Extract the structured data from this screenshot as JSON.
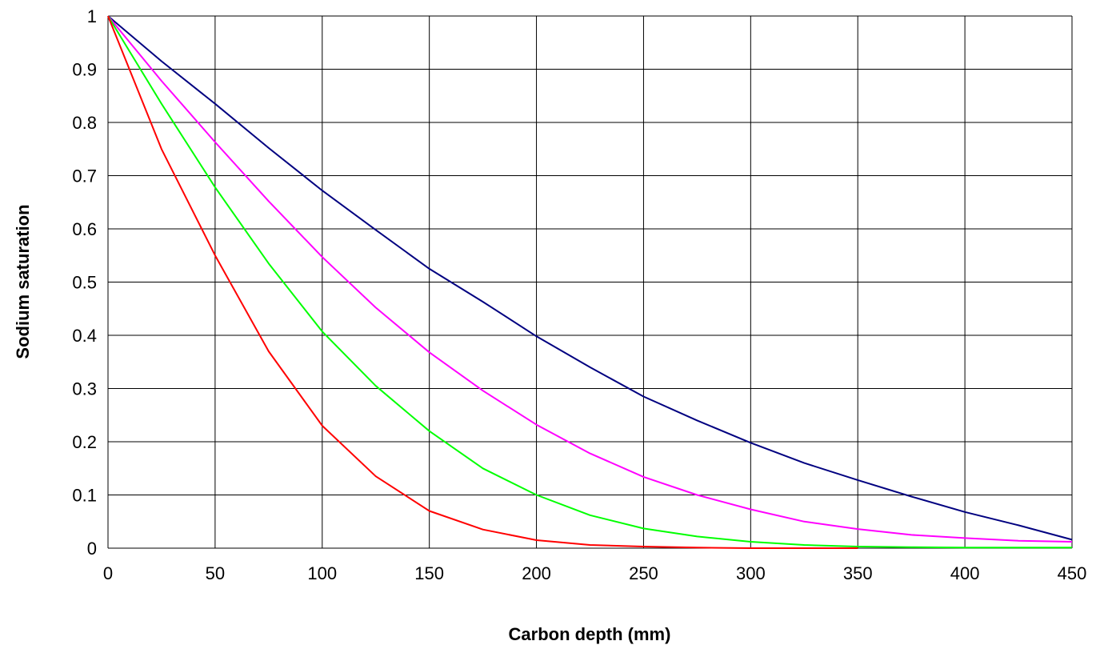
{
  "chart_data": {
    "type": "line",
    "title": "",
    "xlabel": "Carbon depth (mm)",
    "ylabel": "Sodium saturation",
    "xlim": [
      0,
      450
    ],
    "ylim": [
      0,
      1
    ],
    "x_ticks": [
      0,
      50,
      100,
      150,
      200,
      250,
      300,
      350,
      400,
      450
    ],
    "y_ticks": [
      0,
      0.1,
      0.2,
      0.3,
      0.4,
      0.5,
      0.6,
      0.7,
      0.8,
      0.9,
      1
    ],
    "x_tick_labels": [
      "0",
      "50",
      "100",
      "150",
      "200",
      "250",
      "300",
      "350",
      "400",
      "450"
    ],
    "y_tick_labels": [
      "0",
      "0.1",
      "0.2",
      "0.3",
      "0.4",
      "0.5",
      "0.6",
      "0.7",
      "0.8",
      "0.9",
      "1"
    ],
    "grid": true,
    "legend": "none",
    "colors": {
      "grid": "#000000",
      "background": "#ffffff"
    },
    "series": [
      {
        "color": "#000080",
        "x": [
          0,
          25,
          50,
          75,
          100,
          125,
          150,
          175,
          200,
          225,
          250,
          275,
          300,
          325,
          350,
          375,
          400,
          425,
          450
        ],
        "y": [
          1.0,
          0.915,
          0.835,
          0.752,
          0.672,
          0.598,
          0.525,
          0.463,
          0.398,
          0.34,
          0.285,
          0.24,
          0.198,
          0.16,
          0.128,
          0.097,
          0.068,
          0.043,
          0.016
        ]
      },
      {
        "color": "#ff00ff",
        "x": [
          0,
          25,
          50,
          75,
          100,
          125,
          150,
          175,
          200,
          225,
          250,
          275,
          300,
          325,
          350,
          375,
          400,
          425,
          450
        ],
        "y": [
          1.0,
          0.878,
          0.763,
          0.652,
          0.547,
          0.452,
          0.368,
          0.296,
          0.232,
          0.178,
          0.134,
          0.1,
          0.073,
          0.05,
          0.036,
          0.025,
          0.019,
          0.014,
          0.012
        ]
      },
      {
        "color": "#00ff00",
        "x": [
          0,
          25,
          50,
          75,
          100,
          125,
          150,
          175,
          200,
          225,
          250,
          275,
          300,
          325,
          350,
          375,
          400,
          425,
          450
        ],
        "y": [
          1.0,
          0.835,
          0.678,
          0.535,
          0.407,
          0.305,
          0.22,
          0.15,
          0.1,
          0.062,
          0.037,
          0.022,
          0.012,
          0.006,
          0.003,
          0.002,
          0.001,
          0.001,
          0.001
        ]
      },
      {
        "color": "#ff0000",
        "x": [
          0,
          25,
          50,
          75,
          100,
          125,
          150,
          175,
          200,
          225,
          250,
          275,
          300,
          325,
          350
        ],
        "y": [
          1.0,
          0.75,
          0.55,
          0.37,
          0.23,
          0.135,
          0.07,
          0.035,
          0.015,
          0.006,
          0.003,
          0.001,
          0.0,
          0.0,
          0.0
        ]
      }
    ]
  }
}
